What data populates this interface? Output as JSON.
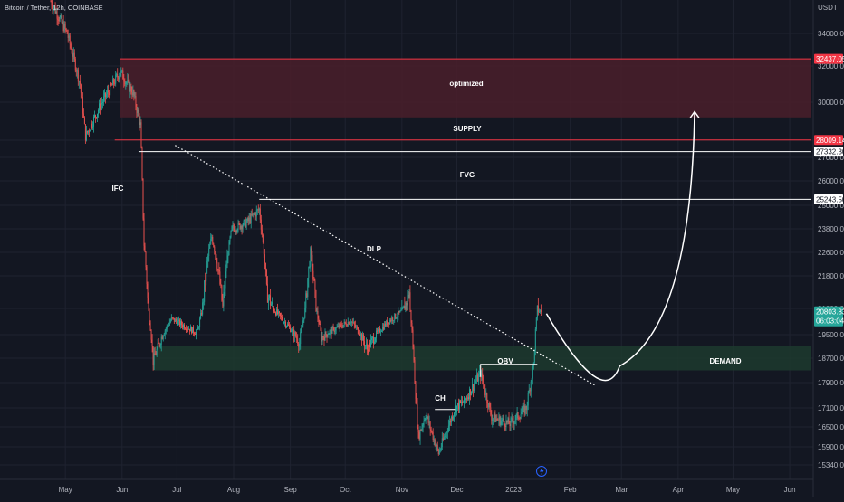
{
  "header": {
    "title": "Bitcoin / Tether, 12h, COINBASE",
    "currency": "USDT"
  },
  "chart_data": {
    "type": "candlestick",
    "symbol": "Bitcoin / Tether",
    "interval": "12h",
    "exchange": "COINBASE",
    "x_tick_labels": [
      "May",
      "Jun",
      "Jul",
      "Aug",
      "Sep",
      "Oct",
      "Nov",
      "Dec",
      "2023",
      "Feb",
      "Mar",
      "Apr",
      "May",
      "Jun"
    ],
    "y_tick_labels": [
      34000,
      32000,
      30000,
      28000,
      27000,
      26000,
      25000,
      23800,
      22600,
      21800,
      21000,
      19500,
      18700,
      17900,
      17100,
      16500,
      15900,
      15340
    ],
    "y_range": [
      15000,
      36300
    ],
    "grid": true,
    "price_path": [
      {
        "date": "2022-04-23",
        "price": 36000
      },
      {
        "date": "2022-05-02",
        "price": 34000
      },
      {
        "date": "2022-05-09",
        "price": 31000
      },
      {
        "date": "2022-05-12",
        "price": 28200
      },
      {
        "date": "2022-05-20",
        "price": 29800
      },
      {
        "date": "2022-05-31",
        "price": 31700
      },
      {
        "date": "2022-06-07",
        "price": 30500
      },
      {
        "date": "2022-06-11",
        "price": 28800
      },
      {
        "date": "2022-06-13",
        "price": 23000
      },
      {
        "date": "2022-06-18",
        "price": 18600
      },
      {
        "date": "2022-06-28",
        "price": 20400
      },
      {
        "date": "2022-07-12",
        "price": 19600
      },
      {
        "date": "2022-07-20",
        "price": 23400
      },
      {
        "date": "2022-07-26",
        "price": 21000
      },
      {
        "date": "2022-07-31",
        "price": 23800
      },
      {
        "date": "2022-08-08",
        "price": 24100
      },
      {
        "date": "2022-08-15",
        "price": 24800
      },
      {
        "date": "2022-08-19",
        "price": 21400
      },
      {
        "date": "2022-08-30",
        "price": 20100
      },
      {
        "date": "2022-09-06",
        "price": 19200
      },
      {
        "date": "2022-09-12",
        "price": 22600
      },
      {
        "date": "2022-09-18",
        "price": 19400
      },
      {
        "date": "2022-10-04",
        "price": 20300
      },
      {
        "date": "2022-10-13",
        "price": 19000
      },
      {
        "date": "2022-10-25",
        "price": 20300
      },
      {
        "date": "2022-11-01",
        "price": 20800
      },
      {
        "date": "2022-11-05",
        "price": 21400
      },
      {
        "date": "2022-11-08",
        "price": 18000
      },
      {
        "date": "2022-11-10",
        "price": 16200
      },
      {
        "date": "2022-11-14",
        "price": 16900
      },
      {
        "date": "2022-11-21",
        "price": 15700
      },
      {
        "date": "2022-11-30",
        "price": 17100
      },
      {
        "date": "2022-12-05",
        "price": 17300
      },
      {
        "date": "2022-12-14",
        "price": 18200
      },
      {
        "date": "2022-12-20",
        "price": 16800
      },
      {
        "date": "2022-12-30",
        "price": 16600
      },
      {
        "date": "2023-01-08",
        "price": 17100
      },
      {
        "date": "2023-01-12",
        "price": 18500
      },
      {
        "date": "2023-01-14",
        "price": 20900
      },
      {
        "date": "2023-01-16",
        "price": 20800
      }
    ],
    "price_tags": [
      {
        "value": "32437.05",
        "bg": "#f23645",
        "fg": "#ffffff",
        "y_value": 32437.05
      },
      {
        "value": "28009.14",
        "bg": "#f23645",
        "fg": "#ffffff",
        "y_value": 28009.14
      },
      {
        "value": "27332.30",
        "bg": "#ffffff",
        "fg": "#131722",
        "y_value": 27332.3
      },
      {
        "value": "25243.50",
        "bg": "#ffffff",
        "fg": "#131722",
        "y_value": 25243.5
      },
      {
        "value": "20803.83",
        "sub": "06:03:04",
        "bg": "#26a69a",
        "fg": "#ffffff",
        "y_value": 20803.83
      }
    ],
    "zones": [
      {
        "label": "optimized",
        "from_date": "2022-05-31",
        "y_top": 32437.05,
        "y_bottom": 29200,
        "fill": "#4a1f2a",
        "stroke": "#f23645"
      },
      {
        "label": "DEMAND",
        "from_date": "2022-06-18",
        "y_top": 19100,
        "y_bottom": 18300,
        "fill": "#1d3a2e",
        "stroke": "none"
      }
    ],
    "levels": [
      {
        "label": "SUPPLY",
        "from_date": "2022-05-28",
        "y": 28009.14,
        "color": "#f23645"
      },
      {
        "label": "",
        "from_date": "2022-06-10",
        "y": 27332.3,
        "color": "#ffffff"
      },
      {
        "label": "",
        "from_date": "2022-08-15",
        "y": 25243.5,
        "color": "#ffffff"
      }
    ],
    "annotations": [
      "optimized",
      "SUPPLY",
      "FVG",
      "IFC",
      "DLP",
      "OBV",
      "CH",
      "DEMAND"
    ],
    "trendline": {
      "label": "DLP",
      "from": {
        "date": "2022-06-30",
        "price": 27700
      },
      "to": {
        "date": "2023-02-15",
        "price": 17800
      },
      "style": "dotted",
      "color": "#ffffff"
    },
    "obv_line": {
      "from_date": "2022-12-14",
      "to_date": "2023-01-14",
      "y": 18500
    },
    "ch_line": {
      "from_date": "2022-11-19",
      "to_date": "2022-11-30",
      "y": 17050
    },
    "projection": {
      "shape": "curve with arrow",
      "color": "#ffffff",
      "points": [
        {
          "date": "2023-01-19",
          "price": 20700
        },
        {
          "date": "2023-02-28",
          "price": 18500
        },
        {
          "date": "2023-04-05",
          "price": 20800
        },
        {
          "date": "2023-04-10",
          "price": 29500
        }
      ]
    }
  },
  "footer": {
    "lightning_icon": "lightning-icon"
  }
}
